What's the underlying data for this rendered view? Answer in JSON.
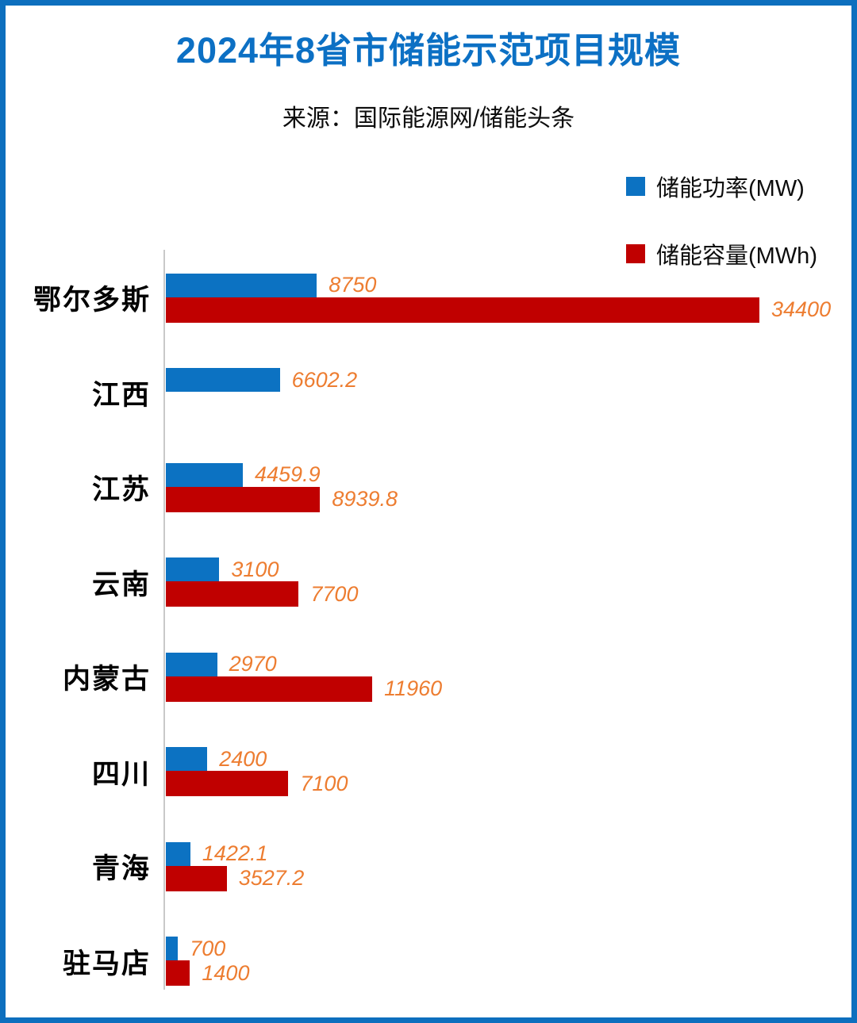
{
  "header": {
    "title": "2024年8省市储能示范项目规模",
    "source": "来源：国际能源网/储能头条"
  },
  "legend": [
    {
      "label": "储能功率(MW)",
      "color": "#0c72c2"
    },
    {
      "label": "储能容量(MWh)",
      "color": "#c00000"
    }
  ],
  "colors": {
    "frame_border": "#0d6fbe",
    "title_blue": "#0c70c4",
    "power_bar_blue": "#0c72c2",
    "capacity_bar_red": "#c00000",
    "value_label_orange": "#ed7d31",
    "axis_gray": "#c9c9c9"
  },
  "chart_data": {
    "type": "bar",
    "orientation": "horizontal",
    "title": "2024年8省市储能示范项目规模",
    "subtitle": "来源：国际能源网/储能头条",
    "xlabel": "",
    "ylabel": "",
    "grid": false,
    "legend_position": "top-right",
    "xlim": [
      0,
      38000
    ],
    "categories": [
      "鄂尔多斯",
      "江西",
      "江苏",
      "云南",
      "内蒙古",
      "四川",
      "青海",
      "驻马店"
    ],
    "series": [
      {
        "name": "储能功率(MW)",
        "color": "#0c72c2",
        "values": [
          8750,
          6602.2,
          4459.9,
          3100,
          2970,
          2400,
          1422.1,
          700
        ]
      },
      {
        "name": "储能容量(MWh)",
        "color": "#c00000",
        "values": [
          34400,
          null,
          8939.8,
          7700,
          11960,
          7100,
          3527.2,
          1400
        ]
      }
    ]
  }
}
